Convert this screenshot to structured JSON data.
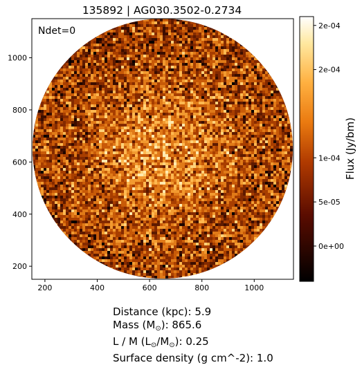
{
  "chart_data": {
    "type": "heatmap",
    "title": "135892 | AG030.3502-0.2734",
    "annotation": "Ndet=0",
    "xlabel": "",
    "ylabel": "",
    "x_ticks": [
      200,
      400,
      600,
      800,
      1000
    ],
    "y_ticks": [
      200,
      400,
      600,
      800,
      1000
    ],
    "xlim": [
      150,
      1150
    ],
    "ylim": [
      150,
      1150
    ],
    "image_shape": "circular field of view",
    "colormap": "afmhot",
    "colorbar": {
      "label": "Flux (Jy/bm)",
      "range": [
        -4e-05,
        0.00026
      ],
      "ticks": [
        0.0,
        5e-05,
        0.0001,
        0.0002,
        0.00025
      ],
      "tick_labels": [
        "0e+00",
        "5e-05",
        "1e-04",
        "2e-04",
        "2e-04"
      ]
    },
    "grid": false,
    "legend": "none"
  },
  "info": {
    "distance_label": "Distance (kpc): 5.9",
    "mass_prefix": "Mass (M",
    "mass_sub": "⊙",
    "mass_suffix": "): 865.6",
    "lm_prefix": "L / M (L",
    "lm_sub1": "⊙",
    "lm_mid": "/M",
    "lm_sub2": "⊙",
    "lm_suffix": "): 0.25",
    "surface_density_label": "Surface density (g cm^-2): 1.0"
  }
}
